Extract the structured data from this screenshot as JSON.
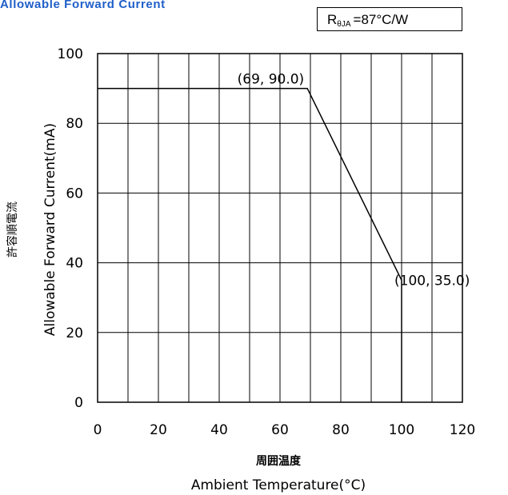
{
  "title": "Allowable Forward Current",
  "rbox": {
    "symbol": "R",
    "subscript": "θJA",
    "value": "=87°C/W"
  },
  "chart_data": {
    "type": "line",
    "series": [
      {
        "x": [
          0,
          69,
          100,
          100
        ],
        "y": [
          90.0,
          90.0,
          35.0,
          0
        ]
      }
    ],
    "xlim": [
      0,
      120
    ],
    "ylim": [
      0,
      100
    ],
    "xticks": [
      0,
      10,
      20,
      30,
      40,
      50,
      60,
      70,
      80,
      90,
      100,
      110,
      120
    ],
    "xtick_labels": [
      "0",
      "20",
      "40",
      "60",
      "80",
      "100",
      "120"
    ],
    "yticks": [
      0,
      20,
      40,
      60,
      80,
      100
    ],
    "ytick_labels": [
      "0",
      "20",
      "40",
      "60",
      "80",
      "100"
    ],
    "ylabel_jp": "許容順電流",
    "ylabel": "Allowable Forward Current(mA)",
    "xlabel_jp": "周囲温度",
    "xlabel": "Ambient Temperature(°C)",
    "grid": true,
    "annotations": [
      {
        "text": "(69, 90.0)",
        "x": 69,
        "y": 90.0
      },
      {
        "text": "(100, 35.0)",
        "x": 100,
        "y": 35.0
      }
    ],
    "line_color": "#000000"
  }
}
